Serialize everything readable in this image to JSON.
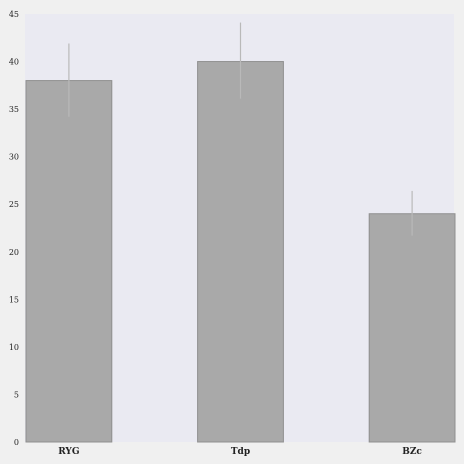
{
  "chart_data": {
    "type": "bar",
    "title": "",
    "xlabel": "",
    "ylabel": "",
    "categories": [
      "RYG",
      "Tdp",
      "BZc"
    ],
    "values": [
      38,
      40,
      24
    ],
    "error_low": [
      34.2,
      36.1,
      21.7
    ],
    "error_high": [
      41.9,
      44.1,
      26.4
    ],
    "ylim": [
      0,
      45
    ],
    "yticks": [
      0,
      5,
      10,
      15,
      20,
      25,
      30,
      35,
      40,
      45
    ],
    "grid": false,
    "legend": "none",
    "colors": {
      "bar": "#a9a9a9",
      "bar_edge": "#8f8f8f",
      "errorbar": "#b9b9b9",
      "plot_bg": "#eaeaf2",
      "page_bg": "#f0f0f0"
    }
  }
}
